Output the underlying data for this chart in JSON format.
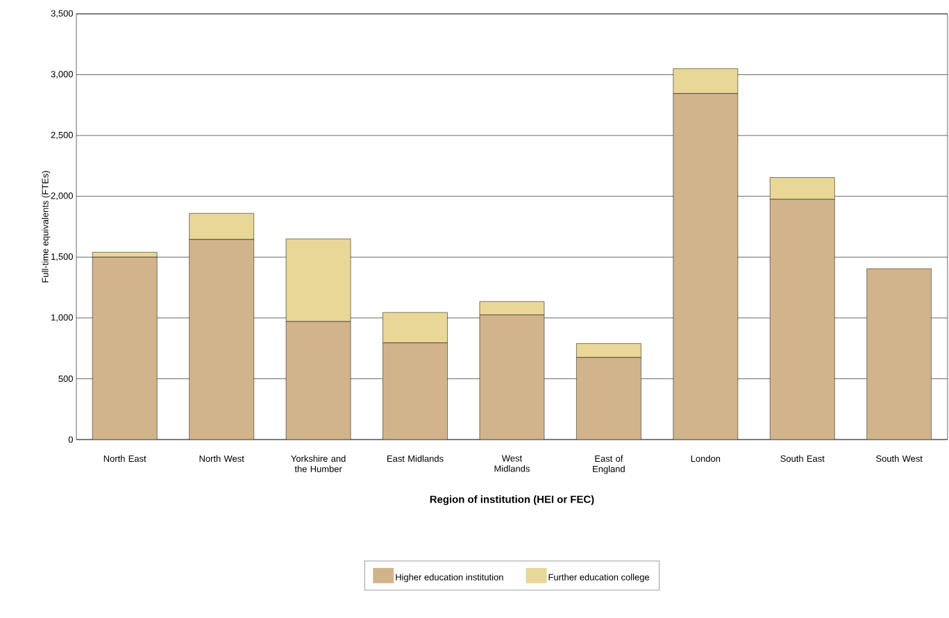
{
  "chart_data": {
    "type": "bar",
    "stacked": true,
    "xlabel": "Region of institution (HEI or FEC)",
    "ylabel": "Full-time equivalents (FTEs)",
    "categories": [
      "North East",
      "North West",
      "Yorkshire and the Humber",
      "East Midlands",
      "West Midlands",
      "East of England",
      "London",
      "South East",
      "South West"
    ],
    "series": [
      {
        "name": "Higher education institution",
        "color": "#d2b48c",
        "values": [
          1500,
          1645,
          970,
          795,
          1025,
          675,
          2845,
          1975,
          1405
        ]
      },
      {
        "name": "Further education college",
        "color": "#e8d796",
        "values": [
          40,
          215,
          680,
          250,
          110,
          115,
          205,
          180,
          0
        ]
      }
    ],
    "ylim": [
      0,
      3500
    ],
    "yticks": [
      0,
      500,
      {
        "value": 1000,
        "label": "1,000"
      },
      {
        "value": 1500,
        "label": "1,500"
      },
      {
        "value": 2000,
        "label": "2,000"
      },
      {
        "value": 2500,
        "label": "2,500"
      },
      {
        "value": 3000,
        "label": "3,000"
      },
      {
        "value": 3500,
        "label": "3,500"
      }
    ],
    "grid": "y",
    "legend": "bottom"
  }
}
